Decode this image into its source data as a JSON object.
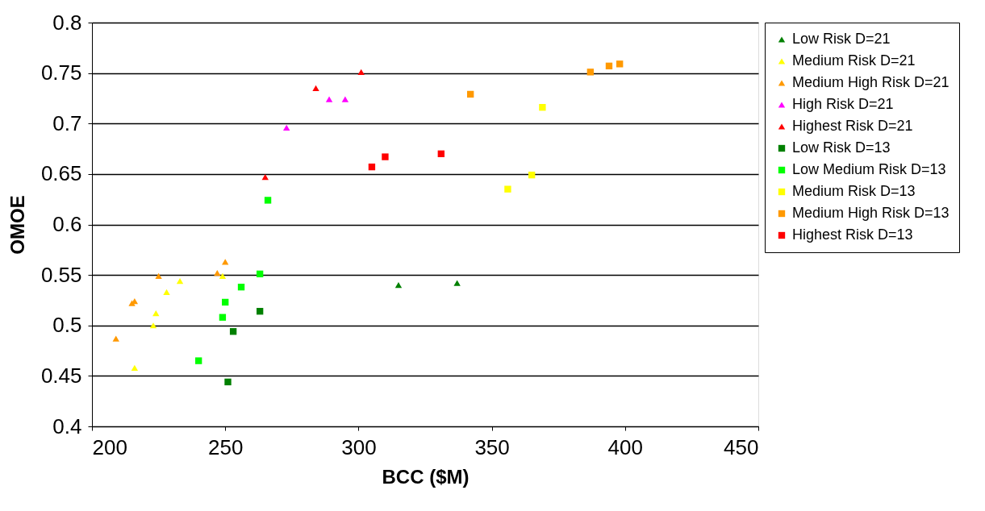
{
  "chart_data": {
    "type": "scatter",
    "xlabel": "BCC ($M)",
    "ylabel": "OMOE",
    "xlim": [
      200,
      450
    ],
    "xticks": [
      200,
      250,
      300,
      350,
      400,
      450
    ],
    "ylim": [
      0.4,
      0.8
    ],
    "yticks": [
      0.4,
      0.45,
      0.5,
      0.55,
      0.6,
      0.65,
      0.7,
      0.75,
      0.8
    ],
    "grid": "y",
    "legend": "right",
    "series": [
      {
        "name": "Low Risk D=21",
        "color": "#008000",
        "marker": "triangle",
        "x": [
          315,
          337
        ],
        "values": [
          0.54,
          0.542
        ]
      },
      {
        "name": "Medium Risk D=21",
        "color": "#ffff00",
        "marker": "triangle",
        "x": [
          216,
          223,
          224,
          228,
          233,
          249
        ],
        "values": [
          0.458,
          0.5,
          0.512,
          0.533,
          0.544,
          0.549
        ]
      },
      {
        "name": "Medium High Risk D=21",
        "color": "#ff9900",
        "marker": "triangle",
        "x": [
          209,
          215,
          216,
          225,
          247,
          250
        ],
        "values": [
          0.487,
          0.522,
          0.524,
          0.549,
          0.552,
          0.563
        ]
      },
      {
        "name": "High Risk D=21",
        "color": "#ff00ff",
        "marker": "triangle",
        "x": [
          273,
          289,
          295
        ],
        "values": [
          0.696,
          0.724,
          0.724
        ]
      },
      {
        "name": "Highest Risk D=21",
        "color": "#ff0000",
        "marker": "triangle",
        "x": [
          265,
          284,
          301
        ],
        "values": [
          0.647,
          0.735,
          0.751
        ]
      },
      {
        "name": "Low Risk D=13",
        "color": "#008000",
        "marker": "square",
        "x": [
          251,
          253,
          263
        ],
        "values": [
          0.444,
          0.494,
          0.514
        ]
      },
      {
        "name": "Low Medium Risk D=13",
        "color": "#00ff00",
        "marker": "square",
        "x": [
          240,
          249,
          250,
          256,
          263,
          266
        ],
        "values": [
          0.465,
          0.508,
          0.523,
          0.538,
          0.551,
          0.624
        ]
      },
      {
        "name": "Medium Risk D=13",
        "color": "#ffff00",
        "marker": "square",
        "x": [
          356,
          365,
          369
        ],
        "values": [
          0.635,
          0.649,
          0.716
        ]
      },
      {
        "name": "Medium High Risk D=13",
        "color": "#ff9900",
        "marker": "square",
        "x": [
          342,
          387,
          394,
          398
        ],
        "values": [
          0.729,
          0.751,
          0.757,
          0.759
        ]
      },
      {
        "name": "Highest Risk D=13",
        "color": "#ff0000",
        "marker": "square",
        "x": [
          305,
          310,
          331
        ],
        "values": [
          0.657,
          0.667,
          0.67
        ]
      }
    ]
  }
}
